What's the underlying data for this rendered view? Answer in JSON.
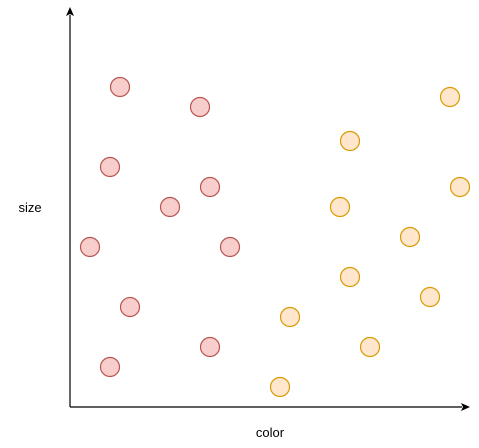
{
  "chart_data": {
    "type": "scatter",
    "title": "",
    "xlabel": "color",
    "ylabel": "size",
    "xlim": [
      0,
      400
    ],
    "ylim": [
      0,
      400
    ],
    "grid": false,
    "ticks": false,
    "series": [
      {
        "name": "red",
        "fill": "#f8cecc",
        "stroke": "#b85450",
        "points": [
          {
            "x": 50,
            "y": 320
          },
          {
            "x": 130,
            "y": 300
          },
          {
            "x": 40,
            "y": 240
          },
          {
            "x": 140,
            "y": 220
          },
          {
            "x": 100,
            "y": 200
          },
          {
            "x": 20,
            "y": 160
          },
          {
            "x": 160,
            "y": 160
          },
          {
            "x": 60,
            "y": 100
          },
          {
            "x": 140,
            "y": 60
          },
          {
            "x": 40,
            "y": 40
          }
        ]
      },
      {
        "name": "orange",
        "fill": "#ffe6cc",
        "stroke": "#d79b00",
        "points": [
          {
            "x": 380,
            "y": 310
          },
          {
            "x": 280,
            "y": 266
          },
          {
            "x": 390,
            "y": 220
          },
          {
            "x": 270,
            "y": 200
          },
          {
            "x": 340,
            "y": 170
          },
          {
            "x": 280,
            "y": 130
          },
          {
            "x": 360,
            "y": 110
          },
          {
            "x": 220,
            "y": 90
          },
          {
            "x": 300,
            "y": 60
          },
          {
            "x": 210,
            "y": 20
          }
        ]
      }
    ]
  }
}
